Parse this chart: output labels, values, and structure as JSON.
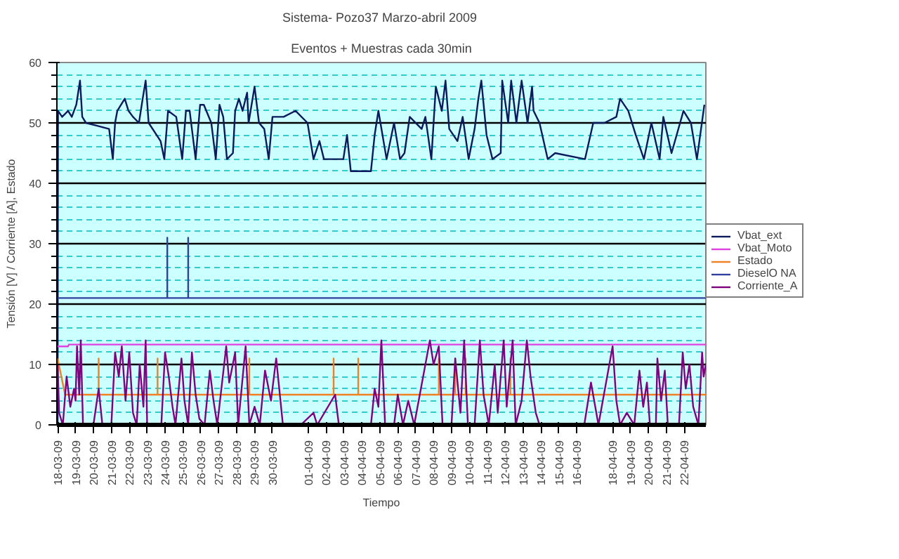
{
  "chart_data": {
    "type": "line",
    "title": "Sistema- Pozo37  Marzo-abril 2009",
    "subtitle": "Eventos + Muestras cada 30min",
    "xlabel": "Tiempo",
    "ylabel": "Tensión [V] / Corriente [A], Estado",
    "xlim": [
      "2009-03-17T23:00",
      "2009-04-23T05:00"
    ],
    "xticks": [
      {
        "value": "2009-03-18",
        "label": "18-03-09"
      },
      {
        "value": "2009-03-19",
        "label": "19-03-09"
      },
      {
        "value": "2009-03-20",
        "label": "20-03-09"
      },
      {
        "value": "2009-03-21",
        "label": "21-03-09"
      },
      {
        "value": "2009-03-22",
        "label": "22-03-09"
      },
      {
        "value": "2009-03-23",
        "label": "23-03-09"
      },
      {
        "value": "2009-03-24",
        "label": "24-03-09"
      },
      {
        "value": "2009-03-25",
        "label": "25-03-09"
      },
      {
        "value": "2009-03-26",
        "label": "26-03-09"
      },
      {
        "value": "2009-03-27",
        "label": "27-03-09"
      },
      {
        "value": "2009-03-28",
        "label": "28-03-09"
      },
      {
        "value": "2009-03-29",
        "label": "29-03-09"
      },
      {
        "value": "2009-03-30",
        "label": "30-03-09"
      },
      {
        "value": "2009-04-01",
        "label": "01-04-09"
      },
      {
        "value": "2009-04-02",
        "label": "02-04-09"
      },
      {
        "value": "2009-04-03",
        "label": "03-04-09"
      },
      {
        "value": "2009-04-04",
        "label": "04-04-09"
      },
      {
        "value": "2009-04-05",
        "label": "05-04-09"
      },
      {
        "value": "2009-04-06",
        "label": "06-04-09"
      },
      {
        "value": "2009-04-07",
        "label": "07-04-09"
      },
      {
        "value": "2009-04-08",
        "label": "08-04-09"
      },
      {
        "value": "2009-04-09",
        "label": "09-04-09"
      },
      {
        "value": "2009-04-10",
        "label": "10-04-09"
      },
      {
        "value": "2009-04-11",
        "label": "11-04-09"
      },
      {
        "value": "2009-04-12",
        "label": "12-04-09"
      },
      {
        "value": "2009-04-13",
        "label": "13-04-09"
      },
      {
        "value": "2009-04-14",
        "label": "14-04-09"
      },
      {
        "value": "2009-04-15",
        "label": "15-04-09"
      },
      {
        "value": "2009-04-16",
        "label": "16-04-09"
      },
      {
        "value": "2009-04-18",
        "label": "18-04-09"
      },
      {
        "value": "2009-04-19",
        "label": "19-04-09"
      },
      {
        "value": "2009-04-20",
        "label": "20-04-09"
      },
      {
        "value": "2009-04-21",
        "label": "21-04-09"
      },
      {
        "value": "2009-04-22",
        "label": "22-04-09"
      }
    ],
    "ylim": [
      0,
      60
    ],
    "yticks": [
      0,
      {
        "value": 2,
        "label": null
      },
      {
        "value": 4,
        "label": null
      },
      {
        "value": 6,
        "label": null
      },
      {
        "value": 8,
        "label": null
      },
      10,
      {
        "value": 12,
        "label": null
      },
      {
        "value": 14,
        "label": null
      },
      {
        "value": 16,
        "label": null
      },
      {
        "value": 18,
        "label": null
      },
      20,
      {
        "value": 22,
        "label": null
      },
      {
        "value": 24,
        "label": null
      },
      {
        "value": 26,
        "label": null
      },
      {
        "value": 28,
        "label": null
      },
      30,
      {
        "value": 32,
        "label": null
      },
      {
        "value": 34,
        "label": null
      },
      {
        "value": 36,
        "label": null
      },
      {
        "value": 38,
        "label": null
      },
      40,
      {
        "value": 42,
        "label": null
      },
      {
        "value": 44,
        "label": null
      },
      {
        "value": 46,
        "label": null
      },
      {
        "value": 48,
        "label": null
      },
      50,
      {
        "value": 52,
        "label": null
      },
      {
        "value": 54,
        "label": null
      },
      {
        "value": 56,
        "label": null
      },
      {
        "value": 58,
        "label": null
      },
      60
    ],
    "grid": "y",
    "legend": "right",
    "marker": "none",
    "line_style": "solid",
    "series": [
      {
        "name": "Vbat_ext",
        "color": "#0a1a5c",
        "x": [
          "2009-03-18T00:00",
          "2009-03-18T00:30",
          "2009-03-18T06:00",
          "2009-03-18T14:00",
          "2009-03-18T19:00",
          "2009-03-19T01:00",
          "2009-03-19T06:00",
          "2009-03-19T09:00",
          "2009-03-19T14:00",
          "2009-03-20T06:00",
          "2009-03-20T21:00",
          "2009-03-21T02:00",
          "2009-03-21T05:00",
          "2009-03-21T08:00",
          "2009-03-21T13:00",
          "2009-03-21T18:00",
          "2009-03-21T23:00",
          "2009-03-22T05:00",
          "2009-03-22T13:00",
          "2009-03-22T18:00",
          "2009-03-22T22:00",
          "2009-03-23T02:00",
          "2009-03-23T18:00",
          "2009-03-23T23:00",
          "2009-03-24T04:00",
          "2009-03-24T15:00",
          "2009-03-24T23:00",
          "2009-03-25T04:00",
          "2009-03-25T09:00",
          "2009-03-25T17:00",
          "2009-03-25T23:00",
          "2009-03-26T04:00",
          "2009-03-26T14:00",
          "2009-03-26T20:00",
          "2009-03-27T01:00",
          "2009-03-27T06:00",
          "2009-03-27T11:00",
          "2009-03-27T19:00",
          "2009-03-27T22:00",
          "2009-03-28T03:00",
          "2009-03-28T08:00",
          "2009-03-28T14:00",
          "2009-03-28T16:00",
          "2009-03-29T00:00",
          "2009-03-29T06:00",
          "2009-03-29T13:00",
          "2009-03-29T19:00",
          "2009-03-30T00:00",
          "2009-03-30T15:00",
          "2009-03-31T07:00",
          "2009-03-31T23:00",
          "2009-04-01T07:00",
          "2009-04-01T15:00",
          "2009-04-01T21:00",
          "2009-04-02T23:00",
          "2009-04-03T04:00",
          "2009-04-03T09:00",
          "2009-04-04T12:00",
          "2009-04-04T17:00",
          "2009-04-04T22:00",
          "2009-04-05T09:00",
          "2009-04-05T19:00",
          "2009-04-06T03:00",
          "2009-04-06T09:00",
          "2009-04-06T16:00",
          "2009-04-07T08:00",
          "2009-04-07T13:00",
          "2009-04-07T21:00",
          "2009-04-08T03:00",
          "2009-04-08T11:00",
          "2009-04-08T16:00",
          "2009-04-08T21:00",
          "2009-04-09T08:00",
          "2009-04-09T15:00",
          "2009-04-09T23:00",
          "2009-04-10T07:00",
          "2009-04-10T12:00",
          "2009-04-10T16:00",
          "2009-04-10T23:00",
          "2009-04-11T07:00",
          "2009-04-11T18:00",
          "2009-04-11T20:00",
          "2009-04-12T04:00",
          "2009-04-12T08:00",
          "2009-04-12T15:00",
          "2009-04-12T22:00",
          "2009-04-13T06:00",
          "2009-04-13T12:00",
          "2009-04-13T14:00",
          "2009-04-13T22:00",
          "2009-04-14T09:00",
          "2009-04-14T19:00",
          "2009-04-16T11:00",
          "2009-04-16T22:00",
          "2009-04-17T13:00",
          "2009-04-18T05:00",
          "2009-04-18T10:00",
          "2009-04-18T21:00",
          "2009-04-19T07:00",
          "2009-04-19T18:00",
          "2009-04-20T04:00",
          "2009-04-20T15:00",
          "2009-04-20T20:00",
          "2009-04-21T07:00",
          "2009-04-21T23:00",
          "2009-04-22T09:00",
          "2009-04-22T17:00",
          "2009-04-23T03:00"
        ],
        "values": [
          0,
          52,
          51,
          52,
          51,
          53,
          57,
          51,
          50,
          49.5,
          49,
          44,
          50,
          52,
          53,
          54,
          52,
          51,
          50,
          54,
          57,
          50,
          47,
          44,
          52,
          51,
          44,
          52,
          52,
          44,
          53,
          53,
          50,
          44,
          53,
          51,
          44,
          45,
          52,
          54,
          52,
          55,
          50,
          56,
          50,
          49,
          44,
          51,
          51,
          52,
          50,
          44,
          47,
          44,
          44,
          48,
          42,
          42,
          48,
          52,
          44,
          50,
          44,
          45,
          51,
          49,
          51,
          44,
          56,
          52,
          57,
          49,
          47,
          51,
          44,
          49,
          54,
          57,
          48,
          44,
          45,
          57,
          50,
          57,
          50,
          57,
          50,
          56,
          52,
          50,
          44,
          45,
          44,
          50,
          50,
          51,
          54,
          52,
          48,
          44,
          50,
          44,
          51,
          45,
          52,
          50,
          44,
          53
        ]
      },
      {
        "name": "Vbat_Moto",
        "color": "#e040e0",
        "x": [
          "2009-03-18T00:00",
          "2009-03-18T14:00",
          "2009-03-18T15:00",
          "2009-04-23T05:00"
        ],
        "values": [
          13,
          13,
          13.3,
          13.3
        ]
      },
      {
        "name": "Estado",
        "color": "#f08020",
        "x": [
          "2009-03-18T00:00",
          "2009-03-18T05:00",
          "2009-03-18T10:00",
          "2009-03-20T07:00",
          "2009-03-20T07:00",
          "2009-03-20T07:00",
          "2009-03-23T14:00",
          "2009-03-23T14:00",
          "2009-03-23T14:00",
          "2009-03-28T17:00",
          "2009-03-28T17:00",
          "2009-03-28T17:00",
          "2009-04-02T10:00",
          "2009-04-02T10:00",
          "2009-04-02T10:00",
          "2009-04-03T19:00",
          "2009-04-03T19:00",
          "2009-04-03T19:00",
          "2009-04-08T07:00",
          "2009-04-08T07:00",
          "2009-04-08T07:00",
          "2009-04-09T05:00",
          "2009-04-09T05:00",
          "2009-04-09T05:00",
          "2009-04-09T19:00",
          "2009-04-09T19:00",
          "2009-04-09T19:00",
          "2009-04-12T07:00",
          "2009-04-12T07:00",
          "2009-04-12T07:00",
          "2009-04-23T05:00"
        ],
        "values": [
          11,
          8,
          5,
          5,
          11,
          5,
          5,
          11,
          5,
          5,
          11,
          5,
          5,
          11,
          5,
          5,
          11,
          5,
          5,
          11,
          5,
          5,
          11,
          5,
          5,
          11,
          5,
          5,
          11,
          5,
          5
        ]
      },
      {
        "name": "DieselO NA",
        "color": "#3040a0",
        "x": [
          "2009-03-18T00:00",
          "2009-03-24T03:00",
          "2009-03-24T03:00",
          "2009-03-24T03:00",
          "2009-03-25T07:00",
          "2009-03-25T07:00",
          "2009-03-25T07:00",
          "2009-04-23T05:00"
        ],
        "values": [
          21,
          21,
          31,
          21,
          21,
          31,
          21,
          21
        ]
      },
      {
        "name": "Corriente_A",
        "color": "#800080",
        "x": [
          "2009-03-18T00:00",
          "2009-03-18T02:00",
          "2009-03-18T07:00",
          "2009-03-18T12:00",
          "2009-03-18T17:00",
          "2009-03-18T22:00",
          "2009-03-19T00:00",
          "2009-03-19T02:00",
          "2009-03-19T05:00",
          "2009-03-19T07:00",
          "2009-03-19T10:00",
          "2009-03-20T00:00",
          "2009-03-20T07:00",
          "2009-03-20T12:00",
          "2009-03-21T00:00",
          "2009-03-21T05:00",
          "2009-03-21T10:00",
          "2009-03-21T14:00",
          "2009-03-21T19:00",
          "2009-03-22T00:00",
          "2009-03-22T05:00",
          "2009-03-22T10:00",
          "2009-03-22T14:00",
          "2009-03-22T19:00",
          "2009-03-22T22:00",
          "2009-03-23T00:00",
          "2009-03-23T19:00",
          "2009-03-24T00:00",
          "2009-03-24T05:00",
          "2009-03-24T10:00",
          "2009-03-24T14:00",
          "2009-03-24T22:00",
          "2009-03-25T02:00",
          "2009-03-25T07:00",
          "2009-03-25T12:00",
          "2009-03-25T17:00",
          "2009-03-25T22:00",
          "2009-03-26T05:00",
          "2009-03-26T12:00",
          "2009-03-26T17:00",
          "2009-03-26T22:00",
          "2009-03-27T10:00",
          "2009-03-27T14:00",
          "2009-03-27T22:00",
          "2009-03-28T02:00",
          "2009-03-28T12:00",
          "2009-03-28T17:00",
          "2009-03-29T00:00",
          "2009-03-29T07:00",
          "2009-03-29T14:00",
          "2009-03-29T22:00",
          "2009-03-30T05:00",
          "2009-03-30T14:00",
          "2009-03-31T14:00",
          "2009-04-01T07:00",
          "2009-04-01T12:00",
          "2009-04-02T12:00",
          "2009-04-02T17:00",
          "2009-04-03T12:00",
          "2009-04-04T12:00",
          "2009-04-04T17:00",
          "2009-04-04T22:00",
          "2009-04-05T02:00",
          "2009-04-05T07:00",
          "2009-04-05T19:00",
          "2009-04-06T00:00",
          "2009-04-06T07:00",
          "2009-04-06T14:00",
          "2009-04-06T22:00",
          "2009-04-07T19:00",
          "2009-04-08T00:00",
          "2009-04-08T07:00",
          "2009-04-08T12:00",
          "2009-04-09T00:00",
          "2009-04-09T05:00",
          "2009-04-09T12:00",
          "2009-04-09T17:00",
          "2009-04-09T22:00",
          "2009-04-10T07:00",
          "2009-04-10T14:00",
          "2009-04-10T19:00",
          "2009-04-11T02:00",
          "2009-04-11T10:00",
          "2009-04-11T14:00",
          "2009-04-11T22:00",
          "2009-04-12T02:00",
          "2009-04-12T10:00",
          "2009-04-12T14:00",
          "2009-04-12T22:00",
          "2009-04-13T05:00",
          "2009-04-13T10:00",
          "2009-04-13T17:00",
          "2009-04-13T22:00",
          "2009-04-16T10:00",
          "2009-04-16T19:00",
          "2009-04-17T05:00",
          "2009-04-18T00:00",
          "2009-04-18T05:00",
          "2009-04-18T10:00",
          "2009-04-18T19:00",
          "2009-04-19T05:00",
          "2009-04-19T12:00",
          "2009-04-19T17:00",
          "2009-04-19T22:00",
          "2009-04-20T02:00",
          "2009-04-20T10:00",
          "2009-04-20T12:00",
          "2009-04-20T17:00",
          "2009-04-20T22:00",
          "2009-04-21T02:00",
          "2009-04-21T17:00",
          "2009-04-21T22:00",
          "2009-04-22T02:00",
          "2009-04-22T07:00",
          "2009-04-22T12:00",
          "2009-04-22T19:00",
          "2009-04-23T00:00",
          "2009-04-23T02:00",
          "2009-04-23T05:00"
        ],
        "values": [
          10,
          2,
          0,
          8,
          3,
          6,
          4,
          13,
          5,
          14,
          0,
          0,
          6,
          0,
          0,
          12,
          8,
          13,
          4,
          12,
          2,
          0,
          10,
          3,
          14,
          0,
          0,
          12,
          8,
          3,
          0,
          11,
          4,
          0,
          12,
          5,
          1,
          0,
          9,
          4,
          0,
          13,
          7,
          12,
          0,
          13,
          0,
          3,
          0,
          9,
          4,
          11,
          0,
          0,
          2,
          0,
          5,
          0,
          0,
          0,
          6,
          3,
          14,
          0,
          0,
          5,
          0,
          4,
          0,
          14,
          10,
          13,
          0,
          0,
          11,
          2,
          14,
          0,
          0,
          14,
          5,
          0,
          10,
          2,
          14,
          3,
          14,
          0,
          4,
          14,
          8,
          2,
          0,
          0,
          7,
          0,
          13,
          4,
          0,
          2,
          0,
          9,
          3,
          7,
          0,
          0,
          11,
          4,
          9,
          0,
          0,
          12,
          6,
          10,
          3,
          0,
          12,
          8,
          10
        ]
      }
    ]
  }
}
